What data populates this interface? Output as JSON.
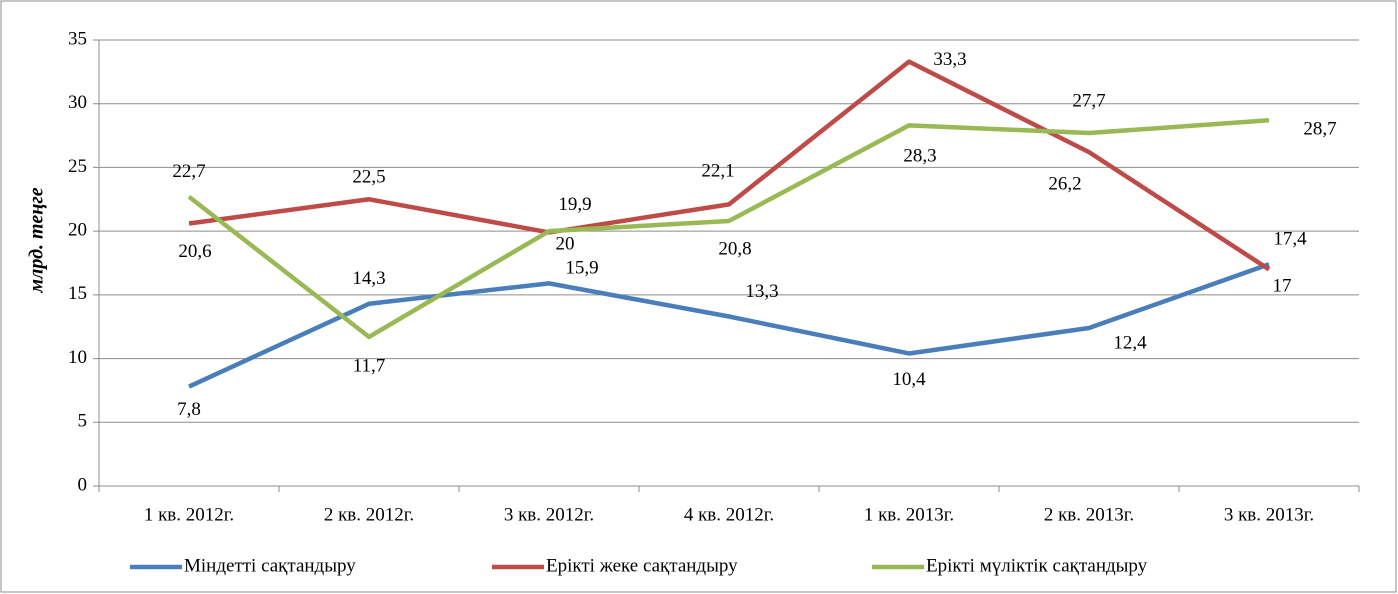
{
  "chart_data": {
    "type": "line",
    "ylabel": "млрд. теңге",
    "categories": [
      "1 кв. 2012г.",
      "2 кв. 2012г.",
      "3 кв. 2012г.",
      "4 кв. 2012г.",
      "1 кв. 2013г.",
      "2 кв. 2013г.",
      "3 кв. 2013г."
    ],
    "series": [
      {
        "name": "Міндетті сақтандыру",
        "color": "#4a7ebb",
        "values": [
          7.8,
          14.3,
          15.9,
          13.3,
          10.4,
          12.4,
          17.4
        ],
        "value_labels": [
          "7,8",
          "14,3",
          "15,9",
          "13,3",
          "10,4",
          "12,4",
          "17,4"
        ]
      },
      {
        "name": "Ерікті жеке сақтандыру",
        "color": "#be4b48",
        "values": [
          20.6,
          22.5,
          19.9,
          22.1,
          33.3,
          26.2,
          17
        ],
        "value_labels": [
          "20,6",
          "22,5",
          "19,9",
          "22,1",
          "33,3",
          "26,2",
          "17"
        ]
      },
      {
        "name": "Ерікті мүліктік сақтандыру",
        "color": "#98b954",
        "values": [
          22.7,
          11.7,
          20,
          20.8,
          28.3,
          27.7,
          28.7
        ],
        "value_labels": [
          "22,7",
          "11,7",
          "20",
          "20,8",
          "28,3",
          "27,7",
          "28,7"
        ]
      }
    ],
    "ylim": [
      0,
      35
    ],
    "yticks": [
      0,
      5,
      10,
      15,
      20,
      25,
      30,
      35
    ],
    "grid": true,
    "legend": "bottom"
  }
}
